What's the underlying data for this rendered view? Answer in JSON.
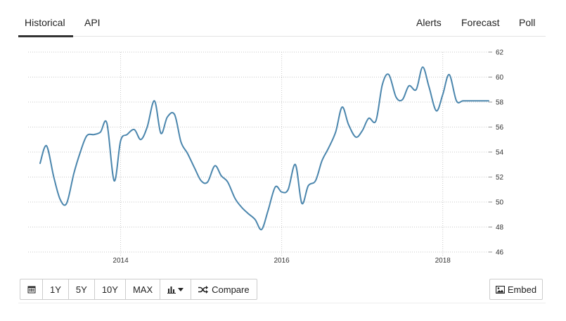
{
  "tabs": {
    "historical": "Historical",
    "api": "API",
    "alerts": "Alerts",
    "forecast": "Forecast",
    "poll": "Poll"
  },
  "toolbar": {
    "range_1y": "1Y",
    "range_5y": "5Y",
    "range_10y": "10Y",
    "range_max": "MAX",
    "compare_label": "Compare",
    "embed_label": "Embed"
  },
  "chart_data": {
    "type": "line",
    "line_color": "#4b86ad",
    "grid": true,
    "ylim": [
      46,
      62
    ],
    "yticks": [
      46,
      48,
      50,
      52,
      54,
      56,
      58,
      60,
      62
    ],
    "xlim": [
      2013.0,
      2018.57
    ],
    "xticks": [
      {
        "x": 2014,
        "label": "2014"
      },
      {
        "x": 2016,
        "label": "2016"
      },
      {
        "x": 2018,
        "label": "2018"
      }
    ],
    "series": [
      {
        "x": [
          2013.0,
          2013.08,
          2013.17,
          2013.25,
          2013.33,
          2013.42,
          2013.5,
          2013.58,
          2013.67,
          2013.75,
          2013.83,
          2013.92,
          2014.0,
          2014.08,
          2014.17,
          2014.25,
          2014.33,
          2014.42,
          2014.5,
          2014.58,
          2014.67,
          2014.75,
          2014.83,
          2014.92,
          2015.0,
          2015.08,
          2015.17,
          2015.25,
          2015.33,
          2015.42,
          2015.5,
          2015.58,
          2015.67,
          2015.75,
          2015.83,
          2015.92,
          2016.0,
          2016.08,
          2016.17,
          2016.25,
          2016.33,
          2016.42,
          2016.5,
          2016.58,
          2016.67,
          2016.75,
          2016.83,
          2016.92,
          2017.0,
          2017.08,
          2017.17,
          2017.25,
          2017.33,
          2017.42,
          2017.5,
          2017.58,
          2017.67,
          2017.75,
          2017.83,
          2017.92,
          2018.0,
          2018.08,
          2018.17,
          2018.25,
          2018.33,
          2018.42,
          2018.5,
          2018.57
        ],
        "y": [
          53.1,
          54.5,
          52.0,
          50.2,
          49.9,
          52.3,
          54.0,
          55.3,
          55.4,
          55.6,
          56.3,
          51.7,
          54.9,
          55.4,
          55.8,
          55.0,
          56.0,
          58.1,
          55.5,
          56.8,
          57.0,
          54.8,
          53.9,
          52.7,
          51.7,
          51.6,
          52.9,
          52.1,
          51.6,
          50.3,
          49.6,
          49.1,
          48.6,
          47.8,
          49.3,
          51.2,
          50.8,
          51.0,
          53.0,
          49.9,
          51.3,
          51.7,
          53.3,
          54.3,
          55.6,
          57.6,
          56.2,
          55.2,
          55.7,
          56.7,
          56.5,
          59.4,
          60.2,
          58.4,
          58.2,
          59.3,
          59.0,
          60.8,
          59.2,
          57.3,
          58.6,
          60.2,
          58.1,
          58.1,
          58.1,
          58.1,
          58.1,
          58.1
        ]
      }
    ]
  }
}
